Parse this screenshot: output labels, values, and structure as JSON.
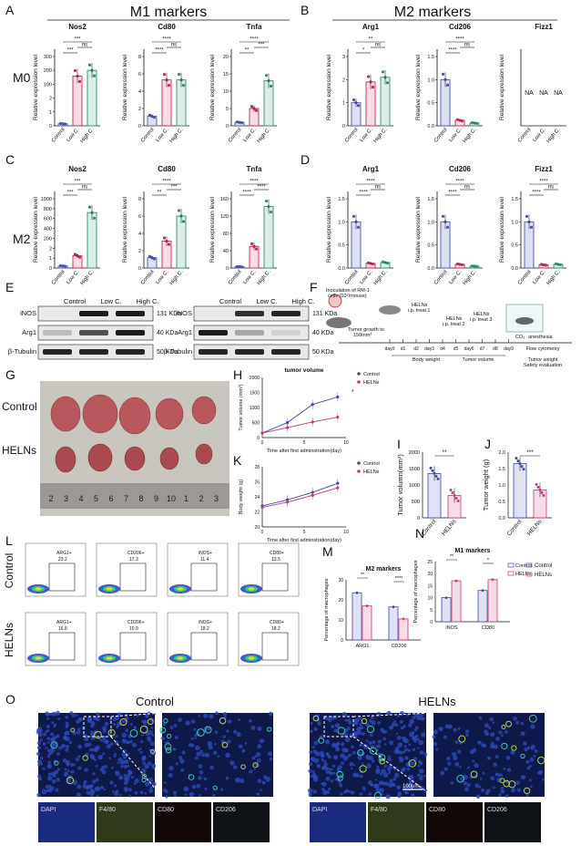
{
  "panels": {
    "A": {
      "letter": "A",
      "header": "M1 markers",
      "row": "M0",
      "charts": [
        {
          "title": "Nos2",
          "ylabel": "Relative expression level",
          "sig": [
            "***",
            "***",
            "ns"
          ],
          "ticks": [
            "0",
            "1",
            "2",
            "100",
            "200",
            "300"
          ]
        },
        {
          "title": "Cd80",
          "ylabel": "Relative expression level",
          "sig": [
            "****",
            "****",
            "ns"
          ],
          "ticks": [
            "0",
            "2",
            "4",
            "6",
            "8"
          ]
        },
        {
          "title": "Tnfa",
          "ylabel": "Relative expression level",
          "sig": [
            "****",
            "**",
            "***"
          ],
          "ticks": [
            "0",
            "5",
            "10",
            "15",
            "20"
          ]
        }
      ]
    },
    "B": {
      "letter": "B",
      "header": "M2 markers",
      "charts": [
        {
          "title": "Arg1",
          "ylabel": "Relative expression level",
          "sig": [
            "**",
            "*",
            "ns"
          ],
          "ticks": [
            "0",
            "1",
            "2",
            "3"
          ]
        },
        {
          "title": "Cd206",
          "ylabel": "Relative expression level",
          "sig": [
            "****",
            "****",
            "ns"
          ],
          "ticks": [
            "0.0",
            "0.5",
            "1.0",
            "1.5"
          ]
        },
        {
          "title": "Fizz1",
          "ylabel": "Relative expression level",
          "na": [
            "NA",
            "NA",
            "NA"
          ],
          "ticks": []
        }
      ]
    },
    "C": {
      "letter": "C",
      "row": "M2",
      "charts": [
        {
          "title": "Nos2",
          "ylabel": "Relative expression level",
          "sig": [
            "***",
            "***",
            "ns"
          ],
          "ticks": [
            "0",
            "1",
            "2",
            "200",
            "400",
            "600",
            "800",
            "1000"
          ]
        },
        {
          "title": "Cd80",
          "ylabel": "Relative expression level",
          "sig": [
            "****",
            "**",
            "***"
          ],
          "ticks": [
            "0",
            "2",
            "4",
            "6",
            "8"
          ]
        },
        {
          "title": "Tnfa",
          "ylabel": "Relative expression level",
          "sig": [
            "****",
            "****",
            "****"
          ],
          "ticks": [
            "0",
            "40",
            "80",
            "120",
            "160"
          ]
        }
      ]
    },
    "D": {
      "letter": "D",
      "charts": [
        {
          "title": "Arg1",
          "ylabel": "Relative expression level",
          "sig": [
            "****",
            "****",
            "ns"
          ],
          "ticks": [
            "0.0",
            "0.5",
            "1.0",
            "1.5"
          ]
        },
        {
          "title": "Cd206",
          "ylabel": "Relative expression level",
          "sig": [
            "****",
            "****",
            "ns"
          ],
          "ticks": [
            "0.0",
            "0.5",
            "1.0",
            "1.5"
          ]
        },
        {
          "title": "Fizz1",
          "ylabel": "Relative expression level",
          "sig": [
            "****",
            "****",
            "ns"
          ],
          "ticks": [
            "0.0",
            "0.5",
            "1.0",
            "1.5"
          ]
        }
      ]
    },
    "E": {
      "letter": "E",
      "cols": [
        "Control",
        "Low C.",
        "High C."
      ],
      "left": [
        {
          "label": "iNOS",
          "kda": "131 KDa"
        },
        {
          "label": "Arg1",
          "kda": "40 KDa"
        },
        {
          "label": "β-Tubulin",
          "kda": "50 KDa"
        }
      ],
      "right": [
        {
          "label": "iNOS",
          "kda": "131 KDa"
        },
        {
          "label": "Arg1",
          "kda": "40 KDa"
        },
        {
          "label": "β-Tubulin",
          "kda": "50 KDa"
        }
      ]
    },
    "F": {
      "letter": "F",
      "inoc": "Inoculation of RM-1",
      "inoc2": "cells (10⁶/mouse)",
      "growth": "Tumor growth to",
      "growth2": "150mm³",
      "t1a": "HELNs",
      "t1b": "i.p. treat 1",
      "t2a": "HELNs",
      "t2b": "i.p. treat 2",
      "t3a": "HELNs",
      "t3b": "i.p. treat 3",
      "co2": "CO₂",
      "anes": "anesthesia",
      "days": [
        "day0",
        "d1",
        "d2",
        "day3",
        "d4",
        "d5",
        "day6",
        "d7",
        "d8",
        "day9"
      ],
      "bw": "Body weight",
      "tv": "Tumor volume",
      "flow": "Flow cytometry",
      "ev1": "Tumor weight",
      "ev2": "Safety evaluation"
    },
    "G": {
      "letter": "G",
      "ctrl": "Control",
      "treat": "HELNs",
      "ruler": [
        "2",
        "3",
        "4",
        "5",
        "6",
        "7",
        "8",
        "9",
        "10",
        "1",
        "2",
        "3"
      ]
    },
    "H": {
      "letter": "H",
      "title": "tumor volume",
      "ylabel": "Tumor volume (mm³)",
      "xlabel": "Time after first adminstration(day)",
      "xticks": [
        "0",
        "5",
        "10"
      ],
      "yticks": [
        "0",
        "500",
        "1000",
        "1500",
        "2000"
      ],
      "legend": [
        "Control",
        "HELNs"
      ],
      "sig": "*"
    },
    "I": {
      "letter": "I",
      "ylabel": "Tumor volumn(mm³)",
      "cats": [
        "Control",
        "HELNs"
      ],
      "ticks": [
        "0",
        "500",
        "1000",
        "1500",
        "2000"
      ],
      "sig": "**"
    },
    "J": {
      "letter": "J",
      "ylabel": "Tumor weight (g)",
      "cats": [
        "Control",
        "HELNs"
      ],
      "ticks": [
        "0.0",
        "0.5",
        "1.0",
        "1.5",
        "2.0"
      ],
      "sig": "***"
    },
    "K": {
      "letter": "K",
      "ylabel": "Body weight (g)",
      "xlabel": "Time after first adminstration(day)",
      "xticks": [
        "0",
        "5",
        "10"
      ],
      "yticks": [
        "20",
        "22",
        "24",
        "26",
        "28"
      ],
      "legend": [
        "Control",
        "HELNs"
      ]
    },
    "L": {
      "letter": "L",
      "ctrl": "Control",
      "treat": "HELNs",
      "gates_ctrl": [
        {
          "name": "ARG1+",
          "val": "23.2"
        },
        {
          "name": "CD206+",
          "val": "17.3"
        },
        {
          "name": "iNOS+",
          "val": "11.4"
        },
        {
          "name": "CD80+",
          "val": "13.5"
        }
      ],
      "gates_treat": [
        {
          "name": "ARG1+",
          "val": "16.8"
        },
        {
          "name": "CD206+",
          "val": "10.9"
        },
        {
          "name": "iNOS+",
          "val": "18.2"
        },
        {
          "name": "CD80+",
          "val": "18.2"
        }
      ]
    },
    "M": {
      "letter": "M",
      "title": "M2 markers",
      "ylabel": "Percentage of macrophages",
      "cats": [
        "ARG1",
        "CD206"
      ],
      "ticks": [
        "0",
        "10",
        "20",
        "30"
      ],
      "sig": [
        "**",
        "****"
      ]
    },
    "N": {
      "letter": "N",
      "title": "M1 markers",
      "ylabel": "Percentage of macrophages",
      "cats": [
        "iNOS",
        "CD80"
      ],
      "ticks": [
        "0",
        "5",
        "10",
        "15",
        "20",
        "25"
      ],
      "sig": [
        "**",
        "*"
      ],
      "legend": [
        "Control",
        "HELNs"
      ]
    },
    "O": {
      "letter": "O",
      "ctrl": "Control",
      "treat": "HELNs",
      "scale": "100μm",
      "channels": [
        "DAPI",
        "F4/80",
        "CD80",
        "CD206"
      ]
    }
  },
  "chart_data": [
    {
      "type": "bar",
      "title": "Nos2",
      "categories": [
        "Control",
        "Low C.",
        "High C."
      ],
      "values": [
        1,
        175,
        195
      ],
      "ylabel": "Relative expression level"
    },
    {
      "type": "bar",
      "title": "Cd80",
      "categories": [
        "Control",
        "Low C.",
        "High C."
      ],
      "values": [
        1.1,
        5.3,
        5.3
      ],
      "ylim": [
        0,
        8
      ],
      "ylabel": "Relative expression level"
    },
    {
      "type": "bar",
      "title": "Tnfa",
      "categories": [
        "Control",
        "Low C.",
        "High C."
      ],
      "values": [
        1,
        5,
        13
      ],
      "ylim": [
        0,
        20
      ],
      "ylabel": "Relative expression level"
    },
    {
      "type": "bar",
      "title": "Arg1",
      "categories": [
        "Control",
        "Low C.",
        "High C."
      ],
      "values": [
        1,
        1.9,
        2.1
      ],
      "ylim": [
        0,
        3
      ],
      "ylabel": "Relative expression level"
    },
    {
      "type": "bar",
      "title": "Cd206",
      "categories": [
        "Control",
        "Low C.",
        "High C."
      ],
      "values": [
        1.0,
        0.12,
        0.06
      ],
      "ylim": [
        0,
        1.5
      ],
      "ylabel": "Relative expression level"
    },
    {
      "type": "bar",
      "title": "Nos2",
      "categories": [
        "Control",
        "Low C.",
        "High C."
      ],
      "values": [
        1,
        150,
        680
      ],
      "ylabel": "Relative expression level"
    },
    {
      "type": "bar",
      "title": "Cd80",
      "categories": [
        "Control",
        "Low C.",
        "High C."
      ],
      "values": [
        1.2,
        3.1,
        6.0
      ],
      "ylim": [
        0,
        8
      ],
      "ylabel": "Relative expression level"
    },
    {
      "type": "bar",
      "title": "Tnfa",
      "categories": [
        "Control",
        "Low C.",
        "High C."
      ],
      "values": [
        1,
        50,
        142
      ],
      "ylim": [
        0,
        160
      ],
      "ylabel": "Relative expression level"
    },
    {
      "type": "bar",
      "title": "Arg1",
      "categories": [
        "Control",
        "Low C.",
        "High C."
      ],
      "values": [
        1.0,
        0.1,
        0.12
      ],
      "ylim": [
        0,
        1.5
      ],
      "ylabel": "Relative expression level"
    },
    {
      "type": "bar",
      "title": "Cd206",
      "categories": [
        "Control",
        "Low C.",
        "High C."
      ],
      "values": [
        1.0,
        0.08,
        0.04
      ],
      "ylim": [
        0,
        1.5
      ],
      "ylabel": "Relative expression level"
    },
    {
      "type": "bar",
      "title": "Fizz1",
      "categories": [
        "Control",
        "Low C.",
        "High C."
      ],
      "values": [
        1.0,
        0.07,
        0.08
      ],
      "ylim": [
        0,
        1.5
      ],
      "ylabel": "Relative expression level"
    },
    {
      "type": "line",
      "title": "tumor volume",
      "x": [
        0,
        3,
        6,
        9
      ],
      "series": [
        {
          "name": "Control",
          "values": [
            150,
            500,
            1100,
            1350
          ]
        },
        {
          "name": "HELNs",
          "values": [
            150,
            330,
            520,
            680
          ]
        }
      ],
      "ylim": [
        0,
        2000
      ],
      "xlabel": "Time after first adminstration(day)",
      "ylabel": "Tumor volume (mm³)"
    },
    {
      "type": "bar",
      "categories": [
        "Control",
        "HELNs"
      ],
      "values": [
        1350,
        680
      ],
      "ylim": [
        0,
        2000
      ],
      "ylabel": "Tumor volumn(mm³)"
    },
    {
      "type": "bar",
      "categories": [
        "Control",
        "HELNs"
      ],
      "values": [
        1.65,
        0.85
      ],
      "ylim": [
        0,
        2.0
      ],
      "ylabel": "Tumor weight (g)"
    },
    {
      "type": "line",
      "x": [
        0,
        3,
        6,
        9
      ],
      "series": [
        {
          "name": "Control",
          "values": [
            22.8,
            23.6,
            24.6,
            25.8
          ]
        },
        {
          "name": "HELNs",
          "values": [
            22.6,
            23.3,
            24.2,
            25.2
          ]
        }
      ],
      "ylim": [
        20,
        28
      ],
      "xlabel": "Time after first adminstration(day)",
      "ylabel": "Body weight (g)"
    },
    {
      "type": "bar",
      "title": "M2 markers",
      "categories": [
        "ARG1",
        "CD206"
      ],
      "series": [
        {
          "name": "Control",
          "values": [
            23.5,
            16.5
          ]
        },
        {
          "name": "HELNs",
          "values": [
            17,
            10.5
          ]
        }
      ],
      "ylim": [
        0,
        30
      ],
      "ylabel": "Percentage of macrophages"
    },
    {
      "type": "bar",
      "title": "M1 markers",
      "categories": [
        "iNOS",
        "CD80"
      ],
      "series": [
        {
          "name": "Control",
          "values": [
            10,
            13
          ]
        },
        {
          "name": "HELNs",
          "values": [
            17,
            17.5
          ]
        }
      ],
      "ylim": [
        0,
        25
      ],
      "ylabel": "Percentage of macrophages"
    }
  ]
}
